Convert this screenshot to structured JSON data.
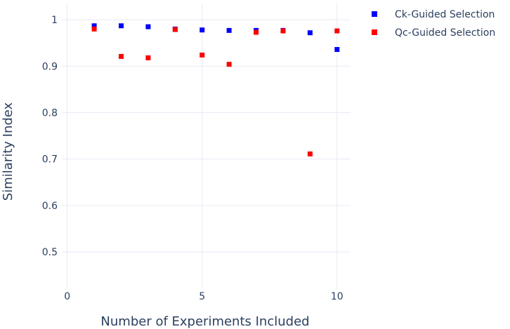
{
  "chart_data": {
    "type": "scatter",
    "title": "",
    "xlabel": "Number of Experiments Included",
    "ylabel": "Similarity Index",
    "xlim": [
      -0.2,
      10.5
    ],
    "ylim": [
      0.42,
      1.035
    ],
    "xticks": [
      0,
      5,
      10
    ],
    "xtick_labels": [
      "0",
      "5",
      "10"
    ],
    "yticks": [
      0.5,
      0.6,
      0.7,
      0.8,
      0.9,
      1.0
    ],
    "ytick_labels": [
      "0.5",
      "0.6",
      "0.7",
      "0.8",
      "0.9",
      "1"
    ],
    "grid": true,
    "legend_position": "top-right",
    "series": [
      {
        "name": "Ck-Guided Selection",
        "color": "#0000ff",
        "x": [
          1,
          2,
          3,
          4,
          5,
          6,
          7,
          8,
          9,
          10
        ],
        "y": [
          0.987,
          0.987,
          0.985,
          0.98,
          0.978,
          0.977,
          0.977,
          0.977,
          0.972,
          0.936
        ]
      },
      {
        "name": "Qc-Guided Selection",
        "color": "#ff0000",
        "x": [
          1,
          2,
          3,
          4,
          5,
          6,
          7,
          8,
          9,
          10
        ],
        "y": [
          0.98,
          0.921,
          0.918,
          0.979,
          0.924,
          0.904,
          0.973,
          0.976,
          0.711,
          0.976
        ]
      }
    ]
  }
}
